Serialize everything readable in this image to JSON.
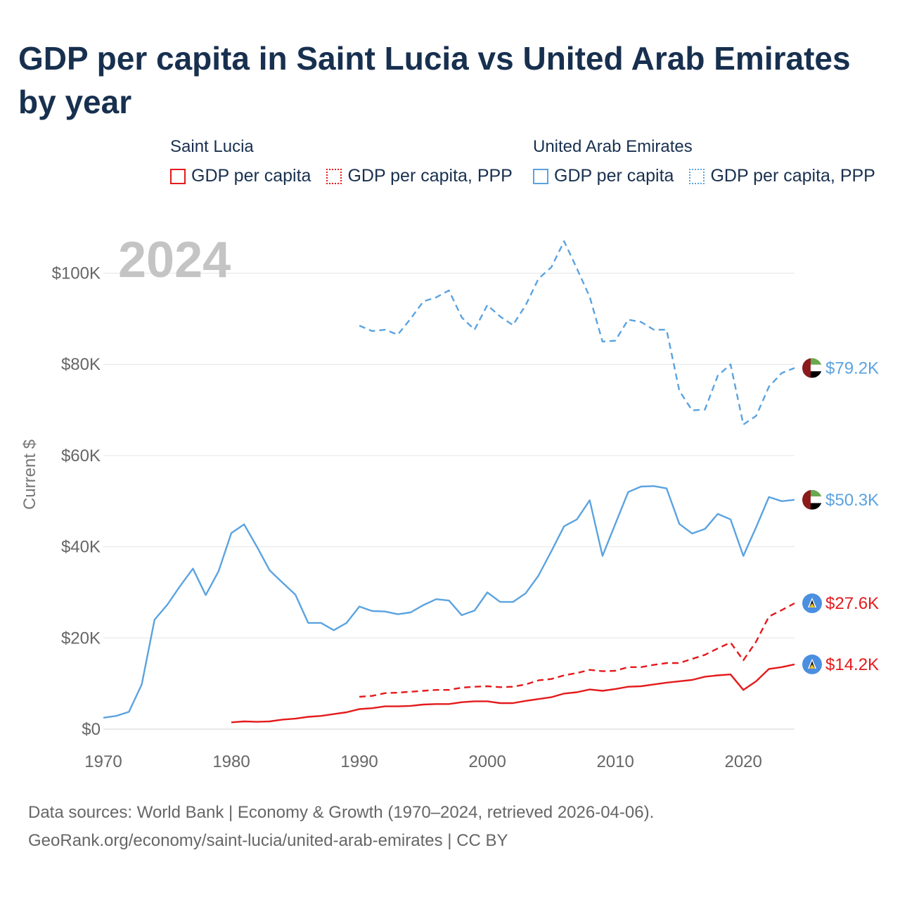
{
  "title": "GDP per capita in Saint Lucia vs United Arab Emirates by year",
  "legend": {
    "groups": [
      {
        "country": "Saint Lucia",
        "items": [
          "GDP per capita",
          "GDP per capita, PPP"
        ],
        "color": "#e41a1c"
      },
      {
        "country": "United Arab Emirates",
        "items": [
          "GDP per capita",
          "GDP per capita, PPP"
        ],
        "color": "#5ba3e0"
      }
    ]
  },
  "year_watermark": "2024",
  "footer": {
    "line1": "Data sources: World Bank | Economy & Growth (1970–2024, retrieved 2026-04-06).",
    "line2": "GeoRank.org/economy/saint-lucia/united-arab-emirates | CC BY"
  },
  "chart_data": {
    "type": "line",
    "title": "GDP per capita in Saint Lucia vs United Arab Emirates by year",
    "xlabel": "",
    "ylabel": "Current $",
    "xlim": [
      1970,
      2024
    ],
    "ylim": [
      0,
      110000
    ],
    "x_ticks": [
      1970,
      1980,
      1990,
      2000,
      2010,
      2020
    ],
    "y_ticks": [
      0,
      20000,
      40000,
      60000,
      80000,
      100000
    ],
    "y_tick_labels": [
      "$0",
      "$20K",
      "$40K",
      "$60K",
      "$80K",
      "$100K"
    ],
    "grid": true,
    "series": [
      {
        "name": "United Arab Emirates GDP per capita, PPP",
        "country": "United Arab Emirates",
        "color": "#5ba3e0",
        "dash": "dashed",
        "end_label": "$79.2K",
        "flag": "uae-flag",
        "x": [
          1990,
          1991,
          1992,
          1993,
          1994,
          1995,
          1996,
          1997,
          1998,
          1999,
          2000,
          2001,
          2002,
          2003,
          2004,
          2005,
          2006,
          2007,
          2008,
          2009,
          2010,
          2011,
          2012,
          2013,
          2014,
          2015,
          2016,
          2017,
          2018,
          2019,
          2020,
          2021,
          2022,
          2023,
          2024
        ],
        "values": [
          88500,
          87300,
          87600,
          86500,
          90000,
          93800,
          94700,
          96200,
          90300,
          87600,
          93000,
          90500,
          88600,
          93000,
          98800,
          101300,
          107000,
          101000,
          94800,
          85000,
          85200,
          89800,
          89300,
          87600,
          87600,
          74200,
          69900,
          70100,
          77500,
          80000,
          66800,
          68700,
          75100,
          78100,
          79200
        ]
      },
      {
        "name": "United Arab Emirates GDP per capita",
        "country": "United Arab Emirates",
        "color": "#5ba3e0",
        "dash": "solid",
        "end_label": "$50.3K",
        "flag": "uae-flag",
        "x": [
          1970,
          1971,
          1972,
          1973,
          1974,
          1975,
          1976,
          1977,
          1978,
          1979,
          1980,
          1981,
          1982,
          1983,
          1984,
          1985,
          1986,
          1987,
          1988,
          1989,
          1990,
          1991,
          1992,
          1993,
          1994,
          1995,
          1996,
          1997,
          1998,
          1999,
          2000,
          2001,
          2002,
          2003,
          2004,
          2005,
          2006,
          2007,
          2008,
          2009,
          2010,
          2011,
          2012,
          2013,
          2014,
          2015,
          2016,
          2017,
          2018,
          2019,
          2020,
          2021,
          2022,
          2023,
          2024
        ],
        "values": [
          2500,
          2900,
          3800,
          9800,
          24000,
          27300,
          31400,
          35200,
          29400,
          34600,
          43000,
          44900,
          40000,
          34800,
          32100,
          29500,
          23300,
          23300,
          21700,
          23300,
          26900,
          25900,
          25800,
          25200,
          25600,
          27200,
          28500,
          28200,
          25000,
          26000,
          30000,
          27900,
          27900,
          29800,
          33700,
          39000,
          44500,
          46000,
          50200,
          38000,
          45000,
          52000,
          53200,
          53300,
          52800,
          45000,
          42900,
          43900,
          47200,
          46000,
          38000,
          44300,
          50900,
          50000,
          50300
        ]
      },
      {
        "name": "Saint Lucia GDP per capita, PPP",
        "country": "Saint Lucia",
        "color": "#e41a1c",
        "dash": "dashed",
        "end_label": "$27.6K",
        "flag": "saint-lucia-flag",
        "x": [
          1990,
          1991,
          1992,
          1993,
          1994,
          1995,
          1996,
          1997,
          1998,
          1999,
          2000,
          2001,
          2002,
          2003,
          2004,
          2005,
          2006,
          2007,
          2008,
          2009,
          2010,
          2011,
          2012,
          2013,
          2014,
          2015,
          2016,
          2017,
          2018,
          2019,
          2020,
          2021,
          2022,
          2023,
          2024
        ],
        "values": [
          7100,
          7300,
          7900,
          8000,
          8200,
          8400,
          8600,
          8600,
          9100,
          9300,
          9400,
          9200,
          9300,
          9800,
          10700,
          11000,
          11800,
          12300,
          13000,
          12700,
          12800,
          13600,
          13600,
          14100,
          14500,
          14500,
          15400,
          16300,
          17700,
          19000,
          15100,
          19200,
          24700,
          26100,
          27600
        ]
      },
      {
        "name": "Saint Lucia GDP per capita",
        "country": "Saint Lucia",
        "color": "#e41a1c",
        "dash": "solid",
        "end_label": "$14.2K",
        "flag": "saint-lucia-flag",
        "x": [
          1980,
          1981,
          1982,
          1983,
          1984,
          1985,
          1986,
          1987,
          1988,
          1989,
          1990,
          1991,
          1992,
          1993,
          1994,
          1995,
          1996,
          1997,
          1998,
          1999,
          2000,
          2001,
          2002,
          2003,
          2004,
          2005,
          2006,
          2007,
          2008,
          2009,
          2010,
          2011,
          2012,
          2013,
          2014,
          2015,
          2016,
          2017,
          2018,
          2019,
          2020,
          2021,
          2022,
          2023,
          2024
        ],
        "values": [
          1500,
          1700,
          1600,
          1700,
          2100,
          2300,
          2700,
          2900,
          3300,
          3700,
          4400,
          4600,
          5000,
          5000,
          5100,
          5400,
          5500,
          5500,
          5900,
          6100,
          6100,
          5700,
          5700,
          6200,
          6600,
          7000,
          7800,
          8100,
          8700,
          8400,
          8800,
          9300,
          9400,
          9800,
          10200,
          10500,
          10800,
          11500,
          11800,
          12000,
          8600,
          10500,
          13200,
          13600,
          14200
        ]
      }
    ]
  }
}
